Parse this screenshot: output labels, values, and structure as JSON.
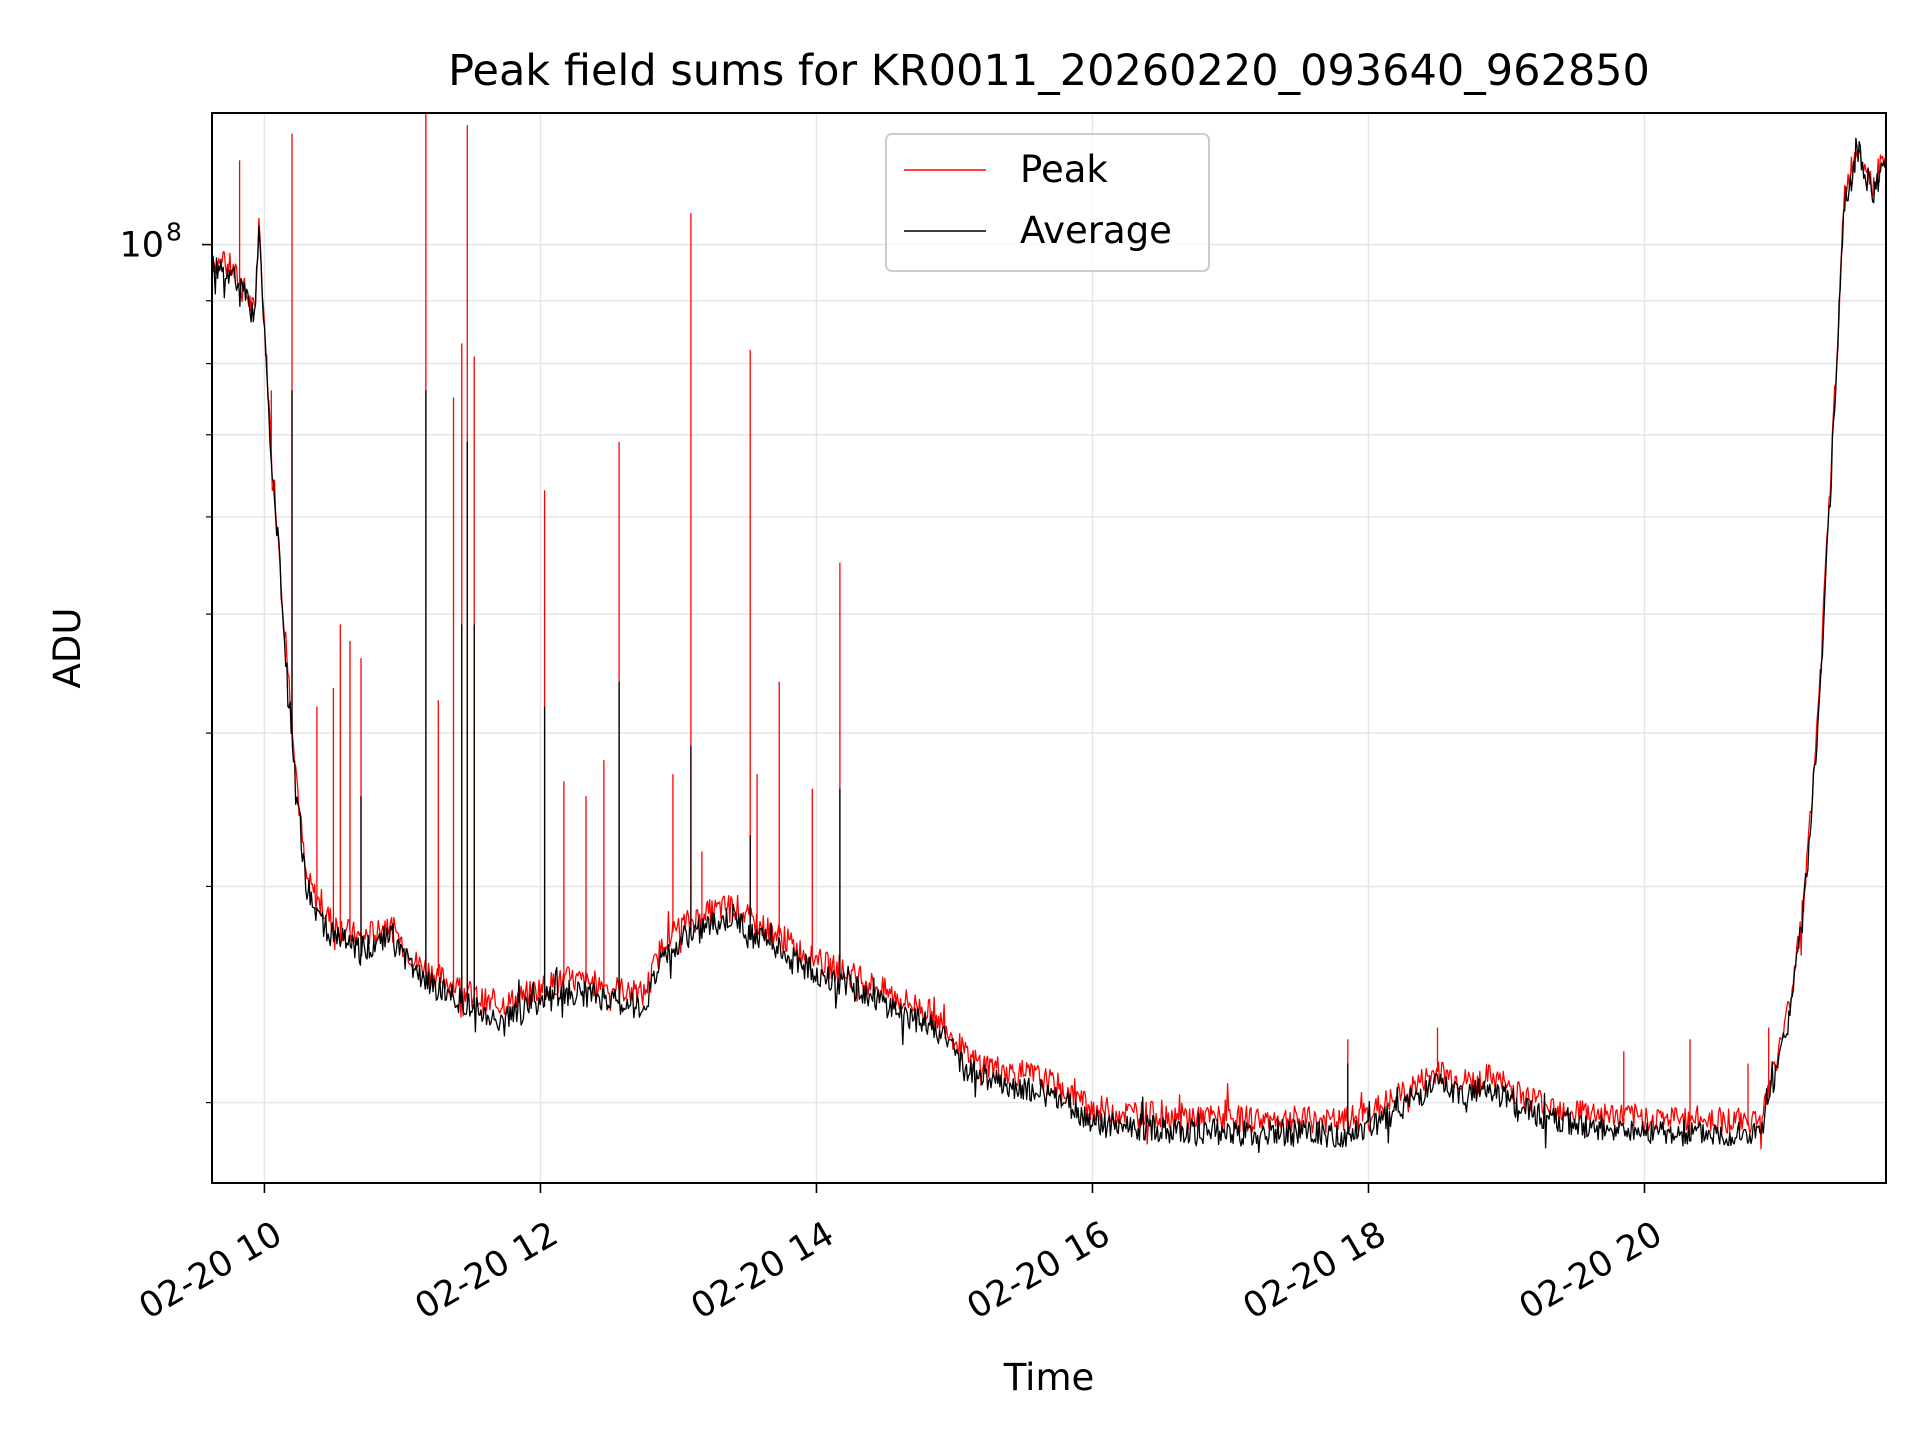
{
  "chart_data": {
    "type": "line",
    "title": "Peak field sums for KR0011_20260220_093640_962850",
    "xlabel": "Time",
    "ylabel": "ADU",
    "yscale": "log",
    "xlim_hours": [
      9.62,
      21.75
    ],
    "ylim": [
      17200000,
      128000000
    ],
    "grid": true,
    "legend_position": "upper center",
    "x_ticks": [
      {
        "value": 10,
        "label": "02-20 10"
      },
      {
        "value": 12,
        "label": "02-20 12"
      },
      {
        "value": 14,
        "label": "02-20 14"
      },
      {
        "value": 16,
        "label": "02-20 16"
      },
      {
        "value": 18,
        "label": "02-20 18"
      },
      {
        "value": 20,
        "label": "02-20 20"
      }
    ],
    "y_major_ticks": [
      {
        "value": 100000000,
        "base": "10",
        "exponent": "8"
      }
    ],
    "y_minor_ticks": [
      20000000,
      30000000,
      40000000,
      50000000,
      60000000,
      70000000,
      80000000,
      90000000
    ],
    "series": [
      {
        "name": "Peak",
        "color": "#ff0000",
        "x": [
          9.62,
          9.75,
          9.85,
          9.93,
          9.96,
          10.0,
          10.05,
          10.1,
          10.15,
          10.2,
          10.25,
          10.3,
          10.4,
          10.5,
          10.7,
          10.9,
          11.1,
          11.3,
          11.5,
          11.65,
          11.8,
          12.0,
          12.2,
          12.4,
          12.6,
          12.75,
          12.9,
          13.0,
          13.2,
          13.4,
          13.55,
          13.7,
          13.9,
          14.1,
          14.3,
          14.45,
          14.6,
          14.8,
          14.95,
          15.1,
          15.4,
          15.6,
          15.8,
          16.0,
          16.3,
          16.6,
          17.0,
          17.4,
          17.8,
          18.0,
          18.2,
          18.5,
          18.7,
          18.9,
          19.1,
          19.4,
          19.8,
          20.2,
          20.5,
          20.75,
          20.85,
          20.95,
          21.05,
          21.15,
          21.25,
          21.35,
          21.45,
          21.55,
          21.65,
          21.75
        ],
        "y": [
          97000000,
          96000000,
          92000000,
          88000000,
          104000000,
          86000000,
          68000000,
          58000000,
          48000000,
          41000000,
          35000000,
          30500000,
          29000000,
          28000000,
          27200000,
          28000000,
          26000000,
          25200000,
          24500000,
          24000000,
          24200000,
          24800000,
          25200000,
          25000000,
          24700000,
          24500000,
          27200000,
          27800000,
          28500000,
          29000000,
          28000000,
          27500000,
          26500000,
          25800000,
          25300000,
          24800000,
          24300000,
          23800000,
          23000000,
          21700000,
          21200000,
          21000000,
          20500000,
          19800000,
          19600000,
          19500000,
          19400000,
          19400000,
          19300000,
          19600000,
          20200000,
          21200000,
          20800000,
          21000000,
          20300000,
          19800000,
          19500000,
          19400000,
          19400000,
          19300000,
          19500000,
          21500000,
          24000000,
          29000000,
          40000000,
          65000000,
          110000000,
          121000000,
          112000000,
          118000000
        ],
        "spikes": [
          {
            "x": 9.82,
            "y": 117000000
          },
          {
            "x": 10.05,
            "y": 76000000
          },
          {
            "x": 10.2,
            "y": 123000000
          },
          {
            "x": 10.38,
            "y": 42000000
          },
          {
            "x": 10.5,
            "y": 43500000
          },
          {
            "x": 10.55,
            "y": 49000000
          },
          {
            "x": 10.62,
            "y": 47500000
          },
          {
            "x": 10.7,
            "y": 46000000
          },
          {
            "x": 11.17,
            "y": 128000000
          },
          {
            "x": 11.26,
            "y": 42500000
          },
          {
            "x": 11.37,
            "y": 75000000
          },
          {
            "x": 11.43,
            "y": 83000000
          },
          {
            "x": 11.47,
            "y": 125000000
          },
          {
            "x": 11.52,
            "y": 81000000
          },
          {
            "x": 12.03,
            "y": 63000000
          },
          {
            "x": 12.17,
            "y": 36500000
          },
          {
            "x": 12.33,
            "y": 35500000
          },
          {
            "x": 12.46,
            "y": 38000000
          },
          {
            "x": 12.57,
            "y": 69000000
          },
          {
            "x": 12.96,
            "y": 37000000
          },
          {
            "x": 13.09,
            "y": 106000000
          },
          {
            "x": 13.17,
            "y": 32000000
          },
          {
            "x": 13.52,
            "y": 82000000
          },
          {
            "x": 13.57,
            "y": 37000000
          },
          {
            "x": 13.73,
            "y": 44000000
          },
          {
            "x": 13.97,
            "y": 36000000
          },
          {
            "x": 14.17,
            "y": 55000000
          },
          {
            "x": 17.85,
            "y": 22500000
          },
          {
            "x": 18.5,
            "y": 23000000
          },
          {
            "x": 19.85,
            "y": 22000000
          },
          {
            "x": 20.33,
            "y": 22500000
          },
          {
            "x": 20.75,
            "y": 21500000
          },
          {
            "x": 20.9,
            "y": 23000000
          }
        ]
      },
      {
        "name": "Average",
        "color": "#000000",
        "x": [
          9.62,
          9.75,
          9.85,
          9.93,
          9.96,
          10.0,
          10.05,
          10.1,
          10.15,
          10.2,
          10.25,
          10.3,
          10.4,
          10.5,
          10.7,
          10.9,
          11.1,
          11.3,
          11.5,
          11.65,
          11.8,
          12.0,
          12.2,
          12.4,
          12.6,
          12.75,
          12.9,
          13.0,
          13.2,
          13.4,
          13.55,
          13.7,
          13.9,
          14.1,
          14.3,
          14.45,
          14.6,
          14.8,
          14.95,
          15.1,
          15.4,
          15.6,
          15.8,
          16.0,
          16.3,
          16.6,
          17.0,
          17.4,
          17.8,
          18.0,
          18.2,
          18.5,
          18.7,
          18.9,
          19.1,
          19.4,
          19.8,
          20.2,
          20.5,
          20.75,
          20.85,
          20.95,
          21.05,
          21.15,
          21.25,
          21.35,
          21.45,
          21.55,
          21.65,
          21.75
        ],
        "y": [
          96000000,
          95000000,
          91000000,
          87000000,
          103000000,
          85000000,
          66000000,
          57000000,
          47000000,
          40000000,
          34500000,
          30000000,
          28300000,
          27300000,
          26600000,
          27400000,
          25400000,
          24600000,
          23900000,
          23400000,
          23600000,
          24200000,
          24600000,
          24400000,
          24100000,
          23900000,
          26500000,
          27100000,
          27800000,
          28300000,
          27300000,
          26800000,
          25900000,
          25200000,
          24700000,
          24200000,
          23700000,
          23200000,
          22400000,
          21200000,
          20700000,
          20500000,
          20000000,
          19300000,
          19100000,
          19000000,
          18900000,
          18900000,
          18800000,
          19100000,
          19700000,
          20700000,
          20300000,
          20500000,
          19800000,
          19300000,
          19000000,
          18900000,
          18900000,
          18800000,
          19000000,
          21000000,
          23500000,
          28500000,
          39000000,
          64000000,
          108000000,
          119000000,
          110000000,
          116000000
        ],
        "spikes": [
          {
            "x": 10.2,
            "y": 76000000
          },
          {
            "x": 10.7,
            "y": 35500000
          },
          {
            "x": 11.17,
            "y": 76000000
          },
          {
            "x": 11.43,
            "y": 49000000
          },
          {
            "x": 11.47,
            "y": 69000000
          },
          {
            "x": 11.52,
            "y": 49000000
          },
          {
            "x": 12.03,
            "y": 42000000
          },
          {
            "x": 12.57,
            "y": 44000000
          },
          {
            "x": 13.09,
            "y": 39000000
          },
          {
            "x": 13.52,
            "y": 33000000
          },
          {
            "x": 14.17,
            "y": 36000000
          },
          {
            "x": 17.85,
            "y": 21500000
          }
        ]
      }
    ]
  }
}
